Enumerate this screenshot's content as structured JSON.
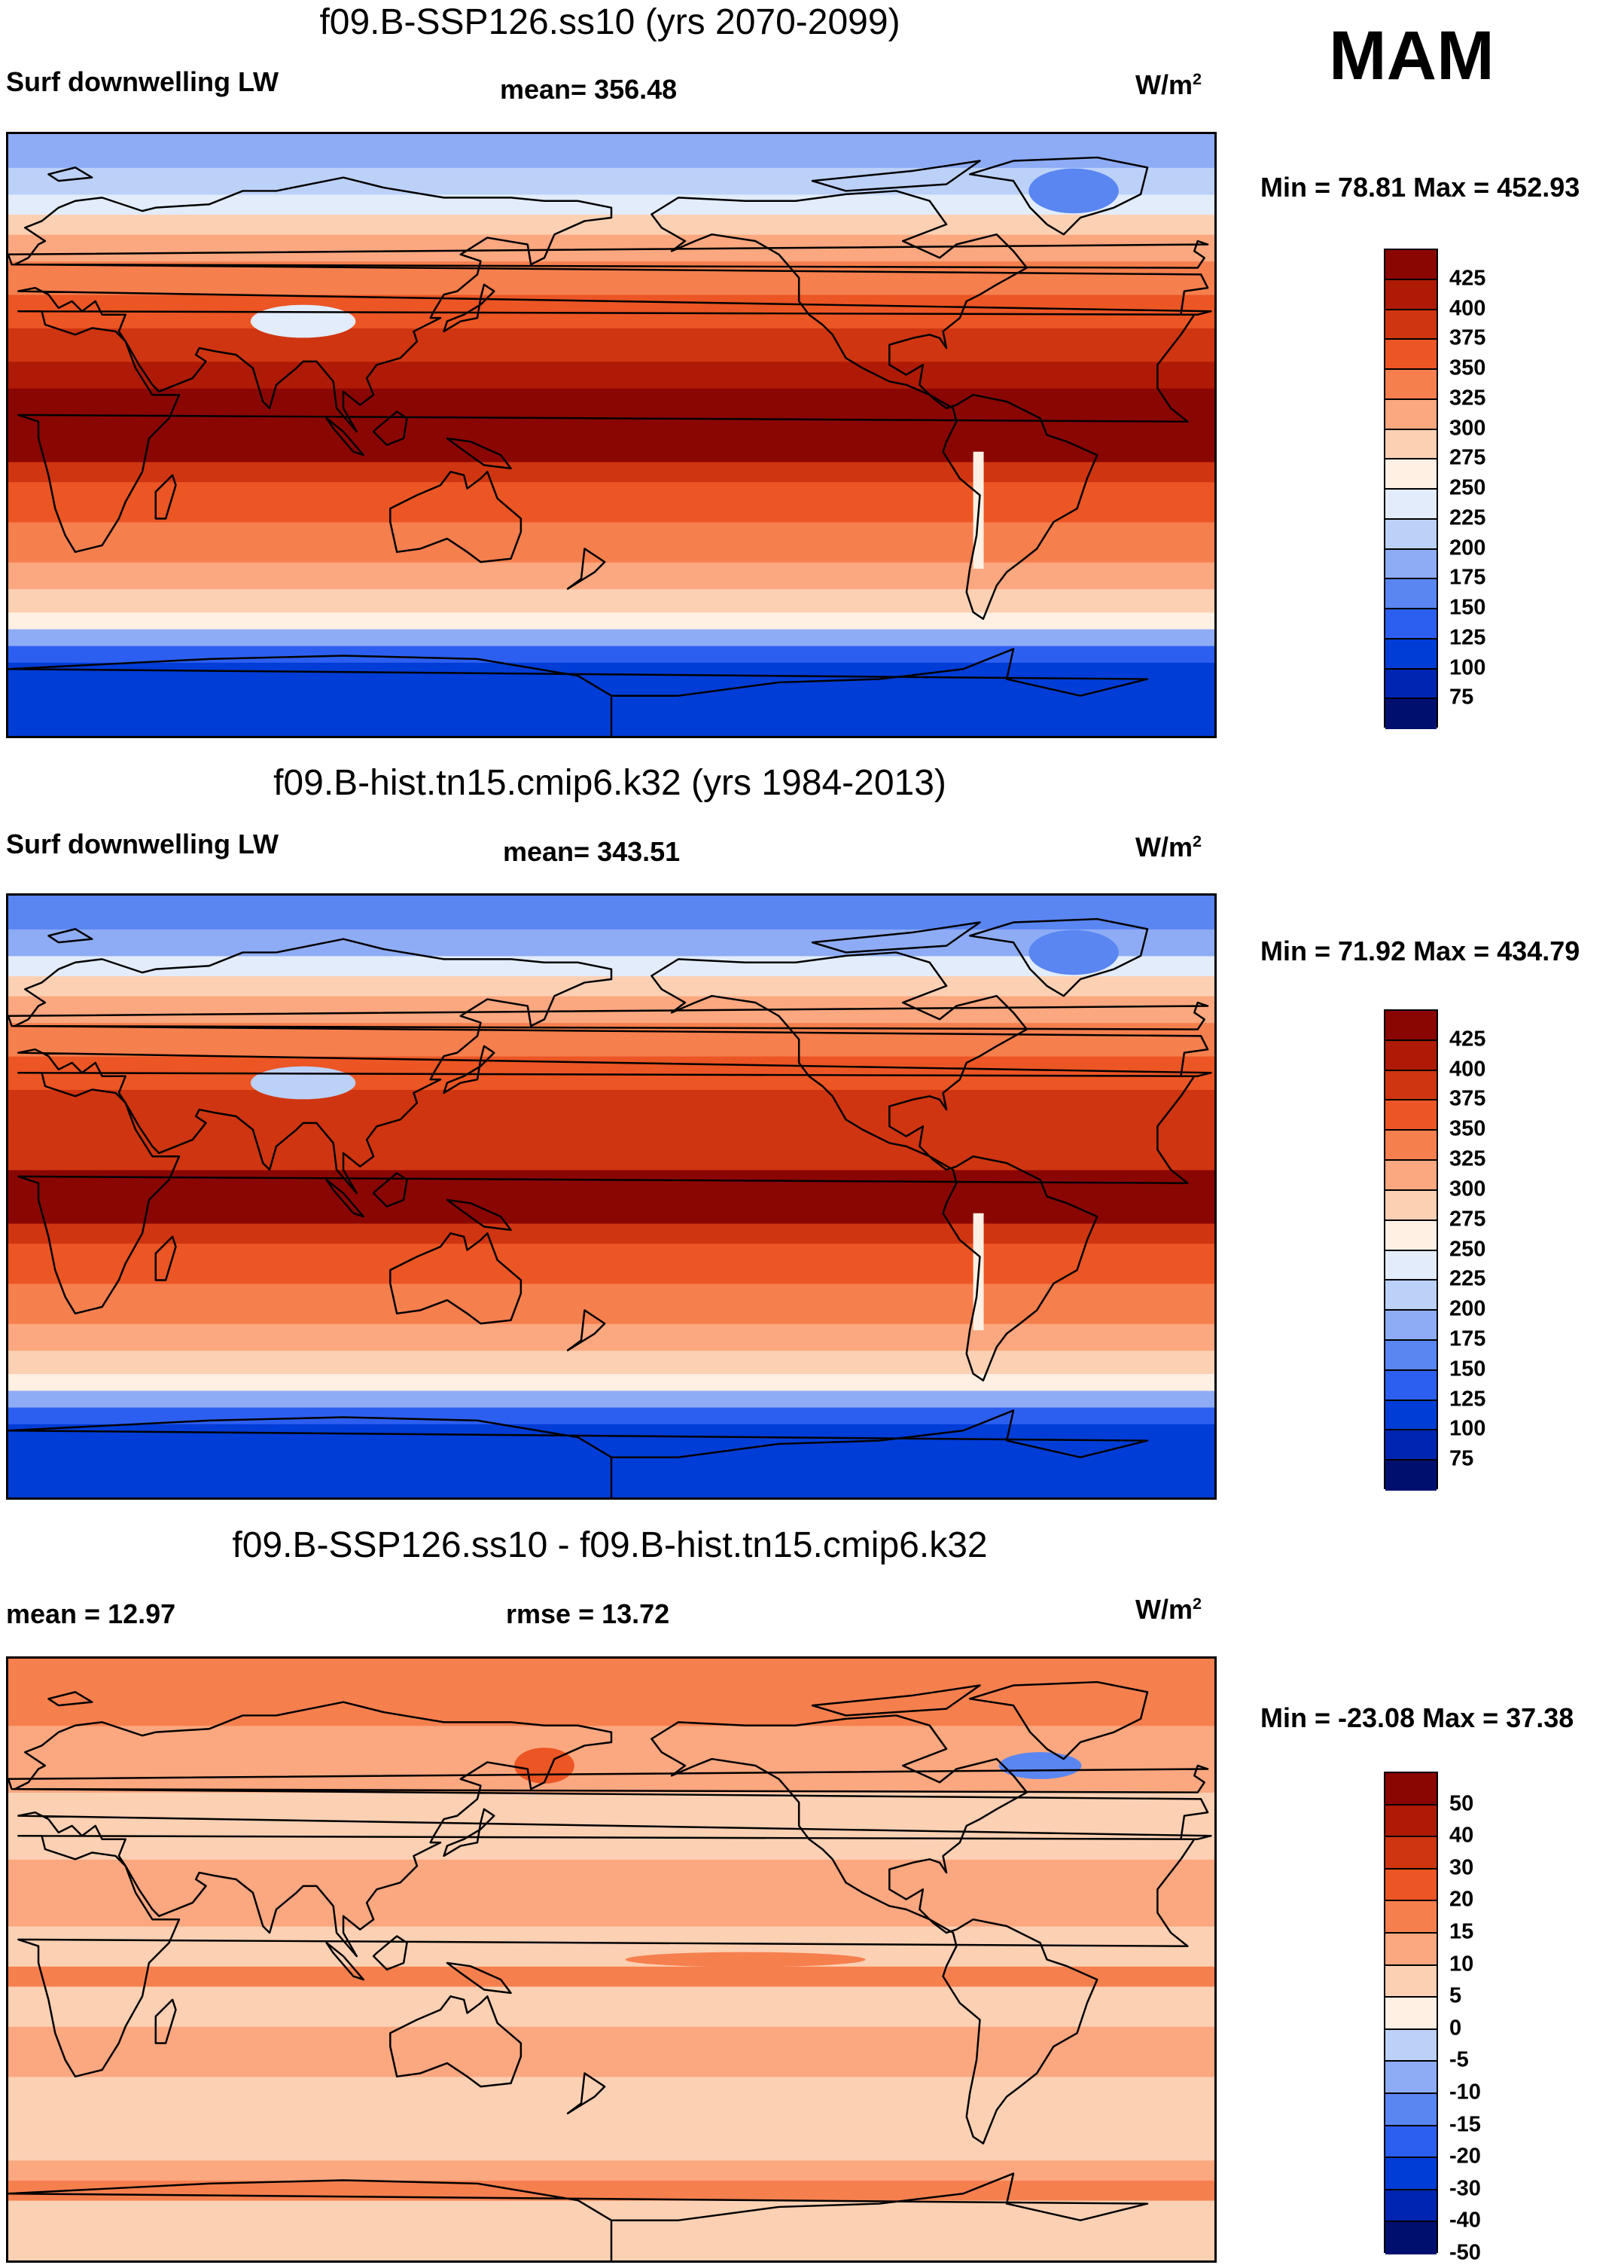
{
  "season": "MAM",
  "palette": {
    "abs": [
      "#000f6e",
      "#0025b0",
      "#003cd6",
      "#2c5ff0",
      "#5a86f2",
      "#8eacf5",
      "#bcd1f8",
      "#e2ecfb",
      "#fff0e3",
      "#fcd0b3",
      "#fba77f",
      "#f67f4e",
      "#ec5524",
      "#cf3510",
      "#ae1a05",
      "#8a0603"
    ],
    "diff": [
      "#000f6e",
      "#0025b0",
      "#003cd6",
      "#2c5ff0",
      "#5a86f2",
      "#8eacf5",
      "#bcd1f8",
      "#fff0e3",
      "#fcd0b3",
      "#fba77f",
      "#f67f4e",
      "#ec5524",
      "#cf3510",
      "#ae1a05",
      "#8a0603"
    ]
  },
  "panels": [
    {
      "title": "f09.B-SSP126.ss10 (yrs 2070-2099)",
      "left_label": "Surf downwelling LW",
      "center_label": "mean= 356.48",
      "units_base": "W/m",
      "units_exp": "2",
      "minmax": "Min =  78.81 Max = 452.93",
      "levels": [
        "425",
        "400",
        "375",
        "350",
        "325",
        "300",
        "275",
        "250",
        "225",
        "200",
        "175",
        "150",
        "125",
        "100",
        "75"
      ],
      "kind": "abs",
      "scenario": "future"
    },
    {
      "title": "f09.B-hist.tn15.cmip6.k32 (yrs 1984-2013)",
      "left_label": "Surf downwelling LW",
      "center_label": "mean= 343.51",
      "units_base": "W/m",
      "units_exp": "2",
      "minmax": "Min =  71.92 Max = 434.79",
      "levels": [
        "425",
        "400",
        "375",
        "350",
        "325",
        "300",
        "275",
        "250",
        "225",
        "200",
        "175",
        "150",
        "125",
        "100",
        "75"
      ],
      "kind": "abs",
      "scenario": "hist"
    },
    {
      "title": "f09.B-SSP126.ss10 - f09.B-hist.tn15.cmip6.k32",
      "left_label": "mean =  12.97",
      "center_label": "rmse =  13.72",
      "units_base": "W/m",
      "units_exp": "2",
      "minmax": "Min = -23.08 Max =  37.38",
      "levels": [
        "50",
        "40",
        "30",
        "20",
        "15",
        "10",
        "5",
        "0",
        "-5",
        "-10",
        "-15",
        "-20",
        "-30",
        "-40",
        "-50"
      ],
      "kind": "diff",
      "scenario": "diff"
    }
  ]
}
